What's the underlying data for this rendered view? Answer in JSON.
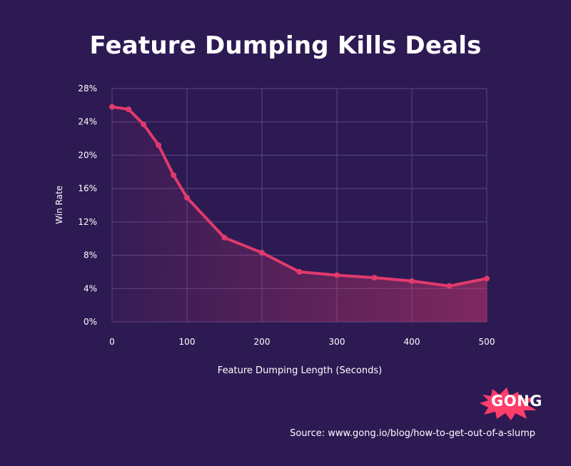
{
  "chart_data": {
    "type": "line",
    "title": "Feature Dumping Kills Deals",
    "xlabel": "Feature Dumping Length (Seconds)",
    "ylabel": "Win Rate",
    "xlim": [
      0,
      500
    ],
    "ylim": [
      0,
      28
    ],
    "x_ticks": [
      "0",
      "100",
      "200",
      "300",
      "400",
      "500"
    ],
    "x_tick_values": [
      0,
      100,
      200,
      300,
      400,
      500
    ],
    "y_ticks": [
      "0%",
      "4%",
      "8%",
      "12%",
      "16%",
      "20%",
      "24%",
      "28%"
    ],
    "y_tick_values": [
      0,
      4,
      8,
      12,
      16,
      20,
      24,
      28
    ],
    "grid": true,
    "x": [
      0,
      22,
      42,
      62,
      82,
      100,
      150,
      200,
      250,
      300,
      350,
      400,
      450,
      500
    ],
    "y": [
      25.8,
      25.5,
      23.7,
      21.2,
      17.6,
      14.9,
      10.1,
      8.3,
      6.0,
      5.6,
      5.3,
      4.9,
      4.3,
      5.2
    ],
    "line_color": "#e03a6c",
    "fill_color": "#e03a6c"
  },
  "branding": {
    "logo_text": "GONG",
    "logo_color": "#ff3d6b"
  },
  "source": "Source: www.gong.io/blog/how-to-get-out-of-a-slump"
}
